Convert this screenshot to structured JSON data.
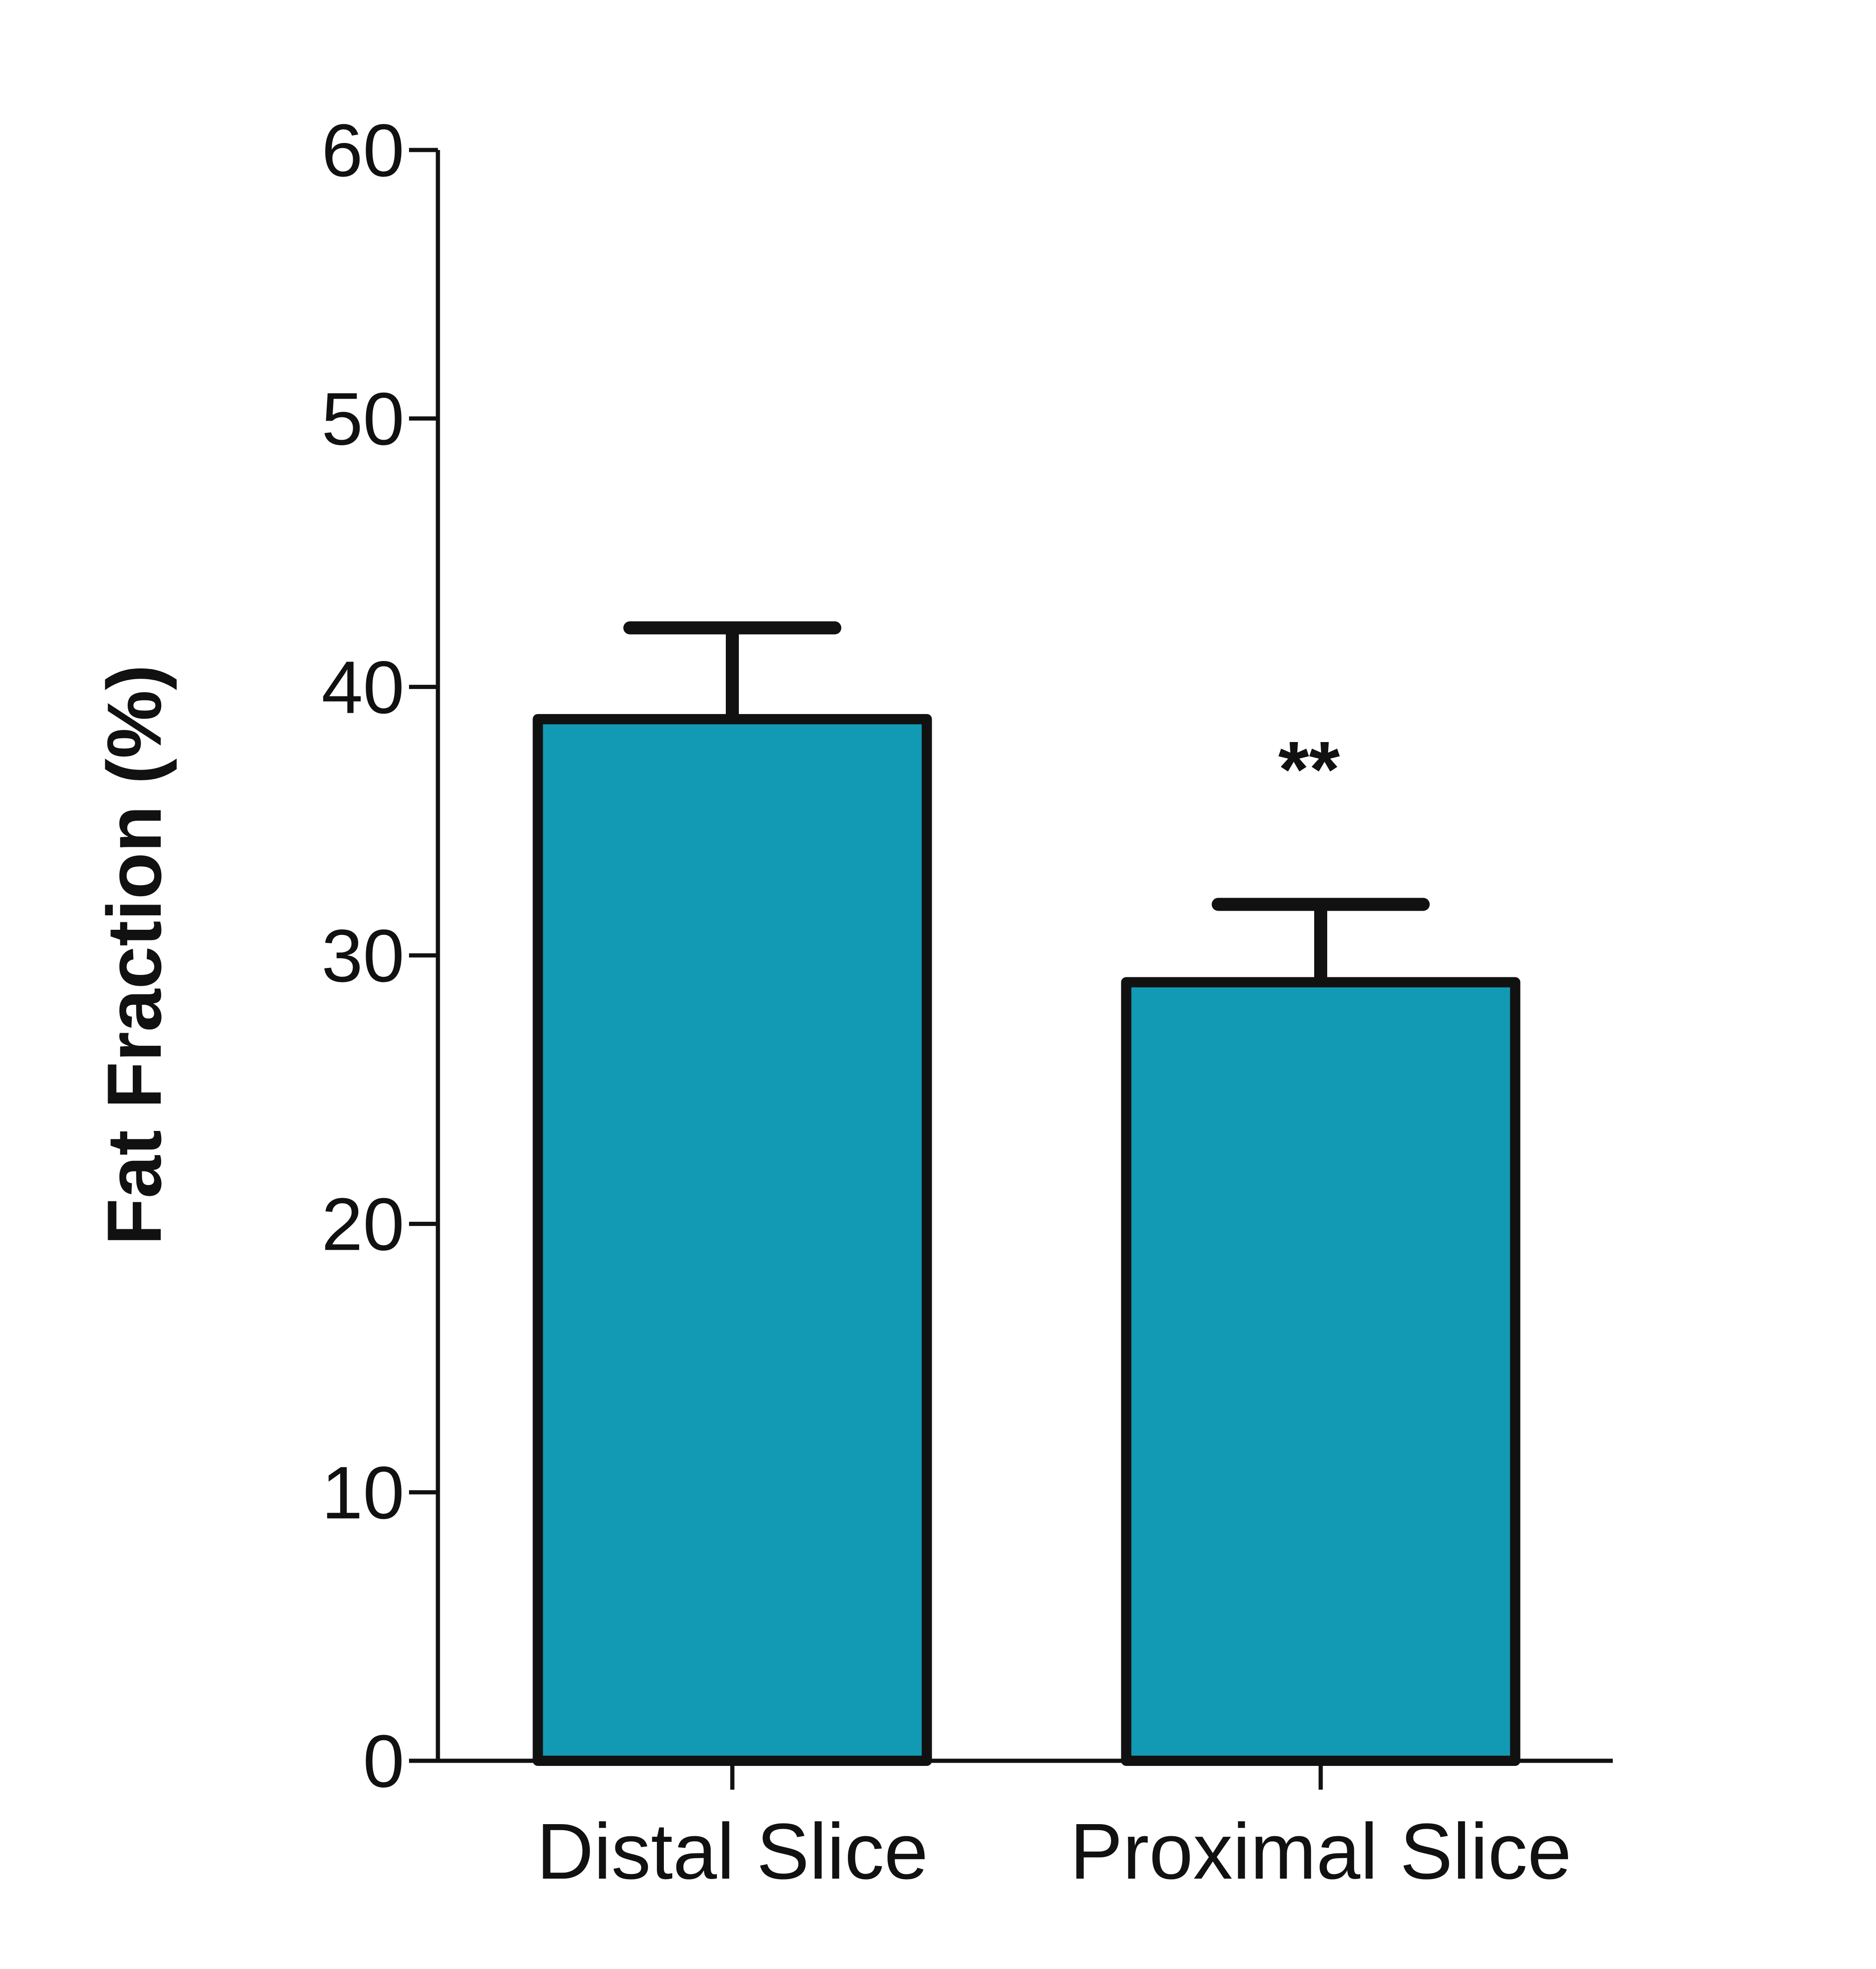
{
  "chart_data": {
    "type": "bar",
    "categories": [
      "Distal Slice",
      "Proximal Slice"
    ],
    "values": [
      38.8,
      29.0
    ],
    "error_upper": [
      42.2,
      31.9
    ],
    "annotations": [
      {
        "category": "Proximal Slice",
        "text": "**"
      }
    ],
    "ylabel": "Fat Fraction (%)",
    "xlabel": "",
    "title": "",
    "ylim": [
      0,
      60
    ],
    "yticks": [
      "0",
      "10",
      "20",
      "30",
      "40",
      "50",
      "60"
    ],
    "grid": false,
    "legend": "none",
    "colors": {
      "bar_fill": "#129AB4",
      "stroke": "#111111"
    }
  }
}
